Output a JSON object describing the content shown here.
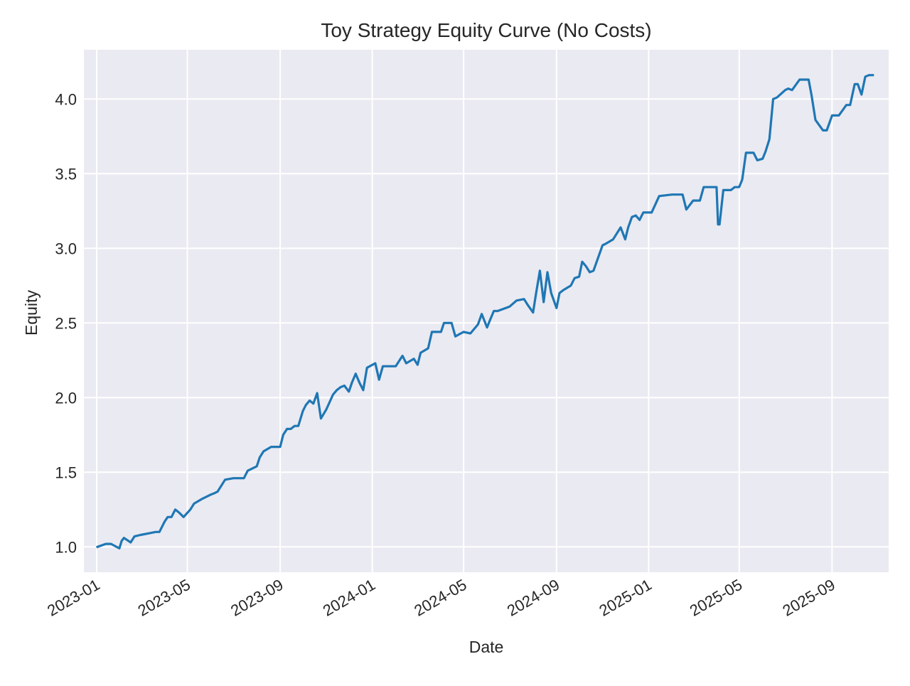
{
  "chart_data": {
    "type": "line",
    "title": "Toy Strategy Equity Curve (No Costs)",
    "xlabel": "Date",
    "ylabel": "Equity",
    "x_ticks": [
      "2023-01",
      "2023-05",
      "2023-09",
      "2024-01",
      "2024-05",
      "2024-09",
      "2025-01",
      "2025-05",
      "2025-09"
    ],
    "y_ticks": [
      "1.0",
      "1.5",
      "2.0",
      "2.5",
      "3.0",
      "3.5",
      "4.0"
    ],
    "xlim": [
      "2022-12-15",
      "2025-11-15"
    ],
    "ylim": [
      0.83,
      4.33
    ],
    "grid": true,
    "legend": "none",
    "colors": {
      "line": "#1f77b4",
      "plot_bg": "#eaeaf2",
      "grid": "#ffffff"
    },
    "series": [
      {
        "x": [
          "2023-01-02",
          "2023-01-13",
          "2023-01-20",
          "2023-01-31",
          "2023-02-03",
          "2023-02-06",
          "2023-02-15",
          "2023-02-20",
          "2023-02-28",
          "2023-03-10",
          "2023-03-20",
          "2023-03-25",
          "2023-04-01",
          "2023-04-05",
          "2023-04-10",
          "2023-04-15",
          "2023-04-20",
          "2023-04-26",
          "2023-05-05",
          "2023-05-10",
          "2023-05-20",
          "2023-06-01",
          "2023-06-06",
          "2023-06-10",
          "2023-06-20",
          "2023-07-01",
          "2023-07-06",
          "2023-07-10",
          "2023-07-15",
          "2023-07-20",
          "2023-08-01",
          "2023-08-05",
          "2023-08-10",
          "2023-08-20",
          "2023-09-01",
          "2023-09-05",
          "2023-09-10",
          "2023-09-15",
          "2023-09-20",
          "2023-09-25",
          "2023-10-01",
          "2023-10-05",
          "2023-10-10",
          "2023-10-15",
          "2023-10-20",
          "2023-10-25",
          "2023-11-01",
          "2023-11-10",
          "2023-11-15",
          "2023-11-20",
          "2023-11-25",
          "2023-12-01",
          "2023-12-05",
          "2023-12-10",
          "2023-12-15",
          "2023-12-20",
          "2023-12-25",
          "2024-01-05",
          "2024-01-10",
          "2024-01-15",
          "2024-02-01",
          "2024-02-10",
          "2024-02-15",
          "2024-02-25",
          "2024-03-01",
          "2024-03-05",
          "2024-03-15",
          "2024-03-20",
          "2024-04-01",
          "2024-04-05",
          "2024-04-15",
          "2024-04-20",
          "2024-05-01",
          "2024-05-10",
          "2024-05-20",
          "2024-05-25",
          "2024-06-01",
          "2024-06-05",
          "2024-06-10",
          "2024-06-15",
          "2024-07-01",
          "2024-07-10",
          "2024-07-20",
          "2024-07-25",
          "2024-08-01",
          "2024-08-05",
          "2024-08-10",
          "2024-08-15",
          "2024-08-20",
          "2024-08-25",
          "2024-09-01",
          "2024-09-05",
          "2024-09-10",
          "2024-09-20",
          "2024-09-25",
          "2024-10-01",
          "2024-10-05",
          "2024-10-10",
          "2024-10-15",
          "2024-10-20",
          "2024-11-01",
          "2024-11-05",
          "2024-11-15",
          "2024-11-25",
          "2024-12-01",
          "2024-12-05",
          "2024-12-10",
          "2024-12-15",
          "2024-12-20",
          "2024-12-25",
          "2025-01-05",
          "2025-01-15",
          "2025-02-01",
          "2025-02-15",
          "2025-02-20",
          "2025-03-01",
          "2025-03-05",
          "2025-03-10",
          "2025-03-15",
          "2025-03-25",
          "2025-04-01",
          "2025-04-03",
          "2025-04-05",
          "2025-04-10",
          "2025-04-20",
          "2025-04-25",
          "2025-05-01",
          "2025-05-05",
          "2025-05-10",
          "2025-05-20",
          "2025-05-25",
          "2025-06-01",
          "2025-06-05",
          "2025-06-10",
          "2025-06-15",
          "2025-06-20",
          "2025-07-01",
          "2025-07-05",
          "2025-07-10",
          "2025-07-20",
          "2025-07-25",
          "2025-08-01",
          "2025-08-05",
          "2025-08-10",
          "2025-08-20",
          "2025-08-25",
          "2025-09-01",
          "2025-09-10",
          "2025-09-20",
          "2025-09-25",
          "2025-10-01",
          "2025-10-05",
          "2025-10-10",
          "2025-10-15",
          "2025-10-20",
          "2025-10-25"
        ],
        "y": [
          1.0,
          1.02,
          1.02,
          0.99,
          1.04,
          1.06,
          1.03,
          1.07,
          1.08,
          1.09,
          1.1,
          1.1,
          1.17,
          1.2,
          1.2,
          1.25,
          1.23,
          1.2,
          1.25,
          1.29,
          1.32,
          1.35,
          1.36,
          1.37,
          1.45,
          1.46,
          1.46,
          1.46,
          1.46,
          1.51,
          1.54,
          1.6,
          1.64,
          1.67,
          1.67,
          1.75,
          1.79,
          1.79,
          1.81,
          1.81,
          1.91,
          1.95,
          1.98,
          1.96,
          2.03,
          1.86,
          1.92,
          2.02,
          2.05,
          2.07,
          2.08,
          2.04,
          2.1,
          2.16,
          2.1,
          2.05,
          2.2,
          2.23,
          2.12,
          2.21,
          2.21,
          2.28,
          2.23,
          2.26,
          2.22,
          2.3,
          2.33,
          2.44,
          2.44,
          2.5,
          2.5,
          2.41,
          2.44,
          2.43,
          2.49,
          2.56,
          2.47,
          2.52,
          2.58,
          2.58,
          2.61,
          2.65,
          2.66,
          2.62,
          2.57,
          2.7,
          2.85,
          2.64,
          2.84,
          2.7,
          2.6,
          2.7,
          2.72,
          2.75,
          2.8,
          2.81,
          2.91,
          2.88,
          2.84,
          2.85,
          3.02,
          3.03,
          3.06,
          3.14,
          3.06,
          3.14,
          3.21,
          3.22,
          3.19,
          3.24,
          3.24,
          3.35,
          3.36,
          3.36,
          3.26,
          3.32,
          3.32,
          3.32,
          3.41,
          3.41,
          3.41,
          3.16,
          3.16,
          3.39,
          3.39,
          3.41,
          3.41,
          3.46,
          3.64,
          3.64,
          3.59,
          3.6,
          3.65,
          3.73,
          4.0,
          4.01,
          4.06,
          4.07,
          4.06,
          4.13,
          4.13,
          4.13,
          4.02,
          3.86,
          3.79,
          3.79,
          3.89,
          3.89,
          3.96,
          3.96,
          4.1,
          4.1,
          4.03,
          4.15,
          4.16,
          4.16
        ]
      }
    ]
  }
}
